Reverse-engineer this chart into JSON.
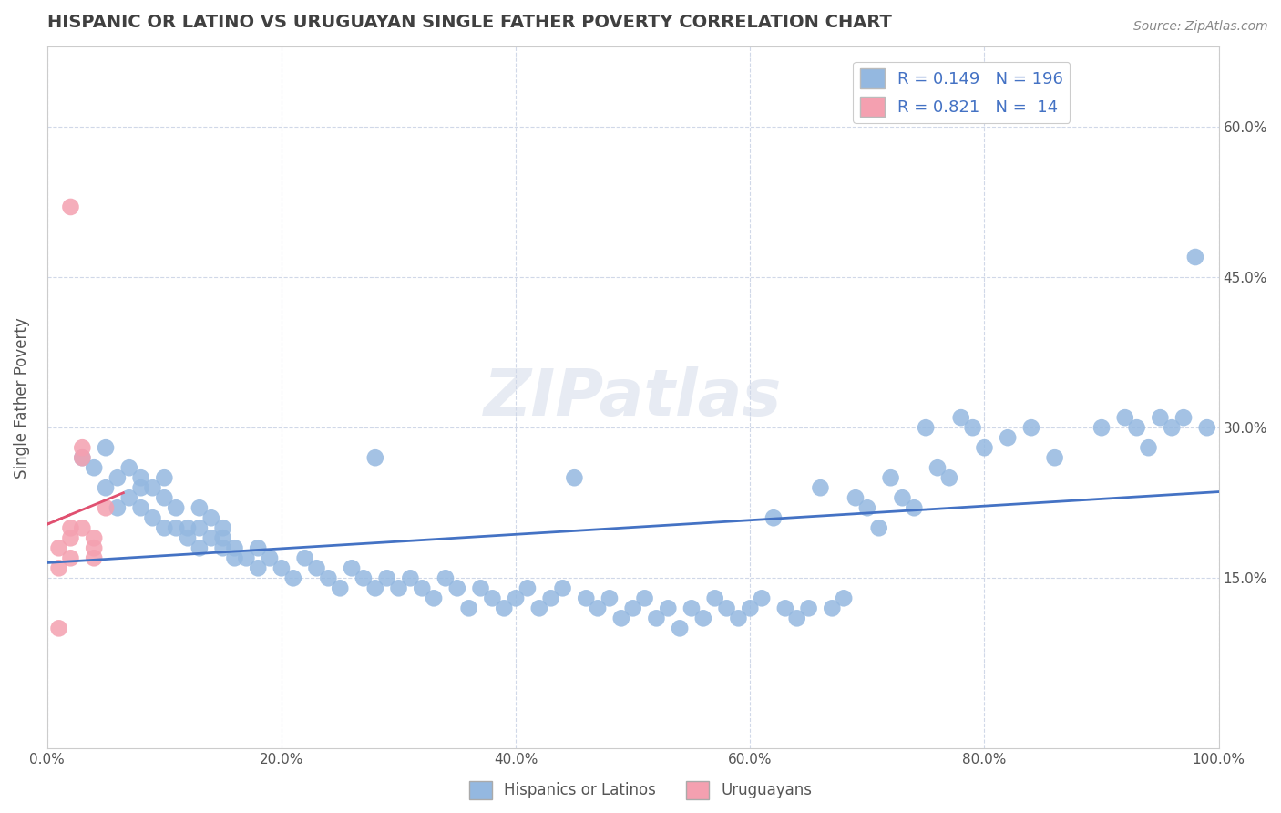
{
  "title": "HISPANIC OR LATINO VS URUGUAYAN SINGLE FATHER POVERTY CORRELATION CHART",
  "source": "Source: ZipAtlas.com",
  "xlabel": "",
  "ylabel": "Single Father Poverty",
  "xlim": [
    0,
    1
  ],
  "ylim": [
    -0.02,
    0.68
  ],
  "yticks": [
    0.15,
    0.3,
    0.45,
    0.6
  ],
  "ytick_labels": [
    "15.0%",
    "30.0%",
    "45.0%",
    "60.0%"
  ],
  "xticks": [
    0.0,
    0.2,
    0.4,
    0.6,
    0.8,
    1.0
  ],
  "xtick_labels": [
    "0.0%",
    "20.0%",
    "40.0%",
    "60.0%",
    "80.0%",
    "100.0%"
  ],
  "blue_R": 0.149,
  "blue_N": 196,
  "pink_R": 0.821,
  "pink_N": 14,
  "blue_color": "#94b8e0",
  "pink_color": "#f4a0b0",
  "blue_line_color": "#4472c4",
  "pink_line_color": "#e05070",
  "legend_label_blue": "Hispanics or Latinos",
  "legend_label_pink": "Uruguayans",
  "watermark": "ZIPatlas",
  "background_color": "#ffffff",
  "grid_color": "#d0d8e8",
  "title_color": "#404040",
  "legend_text_color": "#4472c4",
  "blue_x": [
    0.03,
    0.04,
    0.05,
    0.05,
    0.06,
    0.06,
    0.07,
    0.07,
    0.08,
    0.08,
    0.08,
    0.09,
    0.09,
    0.1,
    0.1,
    0.1,
    0.11,
    0.11,
    0.12,
    0.12,
    0.13,
    0.13,
    0.13,
    0.14,
    0.14,
    0.15,
    0.15,
    0.15,
    0.16,
    0.16,
    0.17,
    0.18,
    0.18,
    0.19,
    0.2,
    0.21,
    0.22,
    0.23,
    0.24,
    0.25,
    0.26,
    0.27,
    0.28,
    0.28,
    0.29,
    0.3,
    0.31,
    0.32,
    0.33,
    0.34,
    0.35,
    0.36,
    0.37,
    0.38,
    0.39,
    0.4,
    0.41,
    0.42,
    0.43,
    0.44,
    0.45,
    0.46,
    0.47,
    0.48,
    0.49,
    0.5,
    0.51,
    0.52,
    0.53,
    0.54,
    0.55,
    0.56,
    0.57,
    0.58,
    0.59,
    0.6,
    0.61,
    0.62,
    0.63,
    0.64,
    0.65,
    0.66,
    0.67,
    0.68,
    0.69,
    0.7,
    0.71,
    0.72,
    0.73,
    0.74,
    0.75,
    0.76,
    0.77,
    0.78,
    0.79,
    0.8,
    0.82,
    0.84,
    0.86,
    0.9,
    0.92,
    0.93,
    0.94,
    0.95,
    0.96,
    0.97,
    0.98,
    0.99
  ],
  "blue_y": [
    0.27,
    0.26,
    0.24,
    0.28,
    0.22,
    0.25,
    0.23,
    0.26,
    0.22,
    0.24,
    0.25,
    0.21,
    0.24,
    0.2,
    0.23,
    0.25,
    0.2,
    0.22,
    0.2,
    0.19,
    0.18,
    0.2,
    0.22,
    0.19,
    0.21,
    0.18,
    0.2,
    0.19,
    0.18,
    0.17,
    0.17,
    0.18,
    0.16,
    0.17,
    0.16,
    0.15,
    0.17,
    0.16,
    0.15,
    0.14,
    0.16,
    0.15,
    0.14,
    0.27,
    0.15,
    0.14,
    0.15,
    0.14,
    0.13,
    0.15,
    0.14,
    0.12,
    0.14,
    0.13,
    0.12,
    0.13,
    0.14,
    0.12,
    0.13,
    0.14,
    0.25,
    0.13,
    0.12,
    0.13,
    0.11,
    0.12,
    0.13,
    0.11,
    0.12,
    0.1,
    0.12,
    0.11,
    0.13,
    0.12,
    0.11,
    0.12,
    0.13,
    0.21,
    0.12,
    0.11,
    0.12,
    0.24,
    0.12,
    0.13,
    0.23,
    0.22,
    0.2,
    0.25,
    0.23,
    0.22,
    0.3,
    0.26,
    0.25,
    0.31,
    0.3,
    0.28,
    0.29,
    0.3,
    0.27,
    0.3,
    0.31,
    0.3,
    0.28,
    0.31,
    0.3,
    0.31,
    0.47,
    0.3
  ],
  "pink_x": [
    0.01,
    0.01,
    0.01,
    0.02,
    0.02,
    0.02,
    0.02,
    0.03,
    0.03,
    0.03,
    0.04,
    0.04,
    0.04,
    0.05
  ],
  "pink_y": [
    0.1,
    0.16,
    0.18,
    0.52,
    0.17,
    0.19,
    0.2,
    0.27,
    0.28,
    0.2,
    0.17,
    0.19,
    0.18,
    0.22
  ]
}
